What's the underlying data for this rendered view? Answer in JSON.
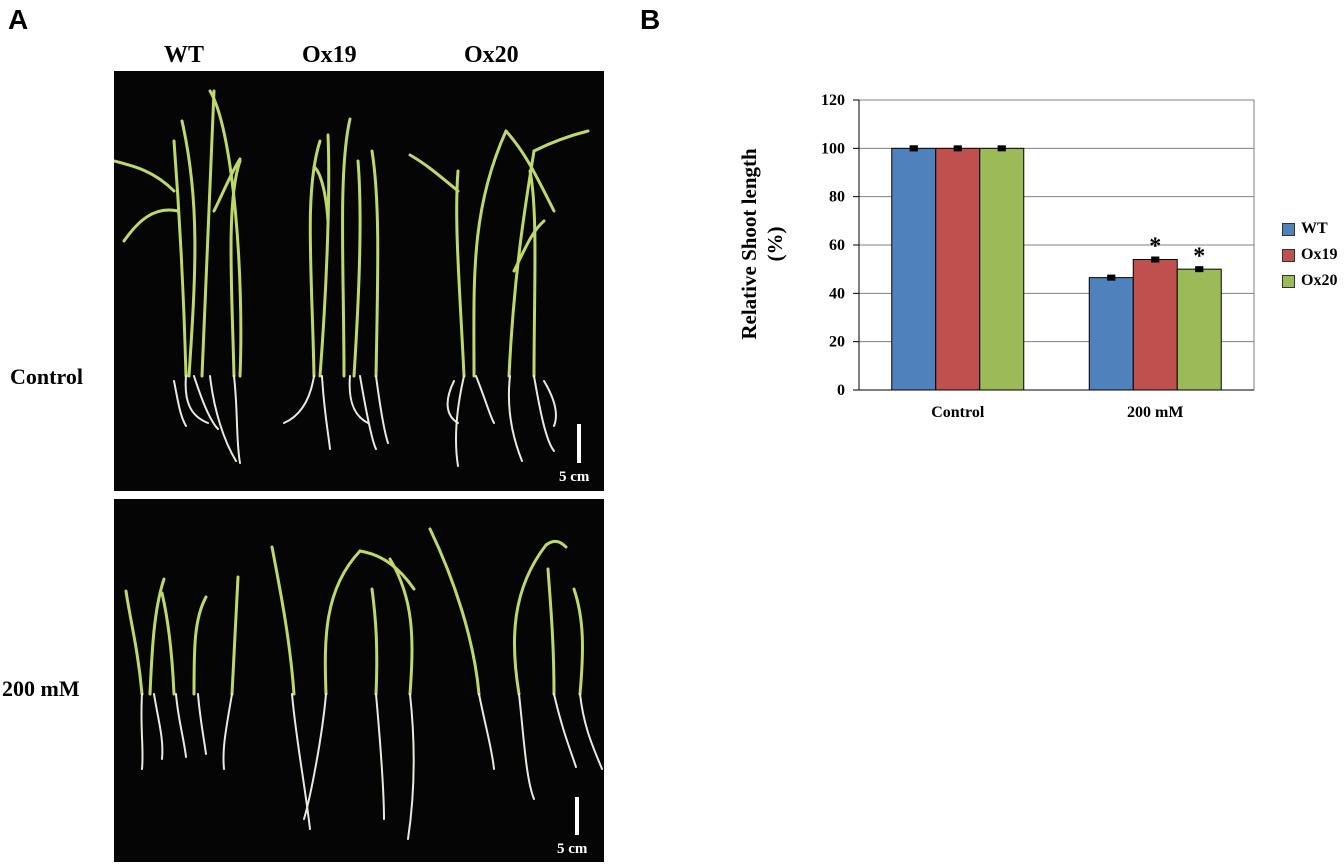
{
  "panels": {
    "a_letter": "A",
    "b_letter": "B"
  },
  "photo": {
    "columns": [
      "WT",
      "Ox19",
      "Ox20"
    ],
    "rows": [
      "Control",
      "200 mM"
    ],
    "scale_bar_label": "5 cm"
  },
  "chart_data": {
    "type": "bar",
    "categories": [
      "Control",
      "200 mM"
    ],
    "series": [
      {
        "name": "WT",
        "values": [
          100,
          46.5
        ],
        "errors": [
          0.8,
          0.7
        ],
        "color": "#4f81bd",
        "significant": [
          false,
          false
        ]
      },
      {
        "name": "Ox19",
        "values": [
          100,
          54
        ],
        "errors": [
          0.5,
          0.8
        ],
        "color": "#c0504d",
        "significant": [
          false,
          true
        ]
      },
      {
        "name": "Ox20",
        "values": [
          100,
          50
        ],
        "errors": [
          0.7,
          0.6
        ],
        "color": "#9bbb59",
        "significant": [
          false,
          true
        ]
      }
    ],
    "ylabel_line1": "Relative Shoot length",
    "ylabel_line2": "(%)",
    "significance_marker": "*",
    "ylim": [
      0,
      120
    ],
    "yticks": [
      0,
      20,
      40,
      60,
      80,
      100,
      120
    ],
    "grid": true,
    "legend": "right"
  }
}
